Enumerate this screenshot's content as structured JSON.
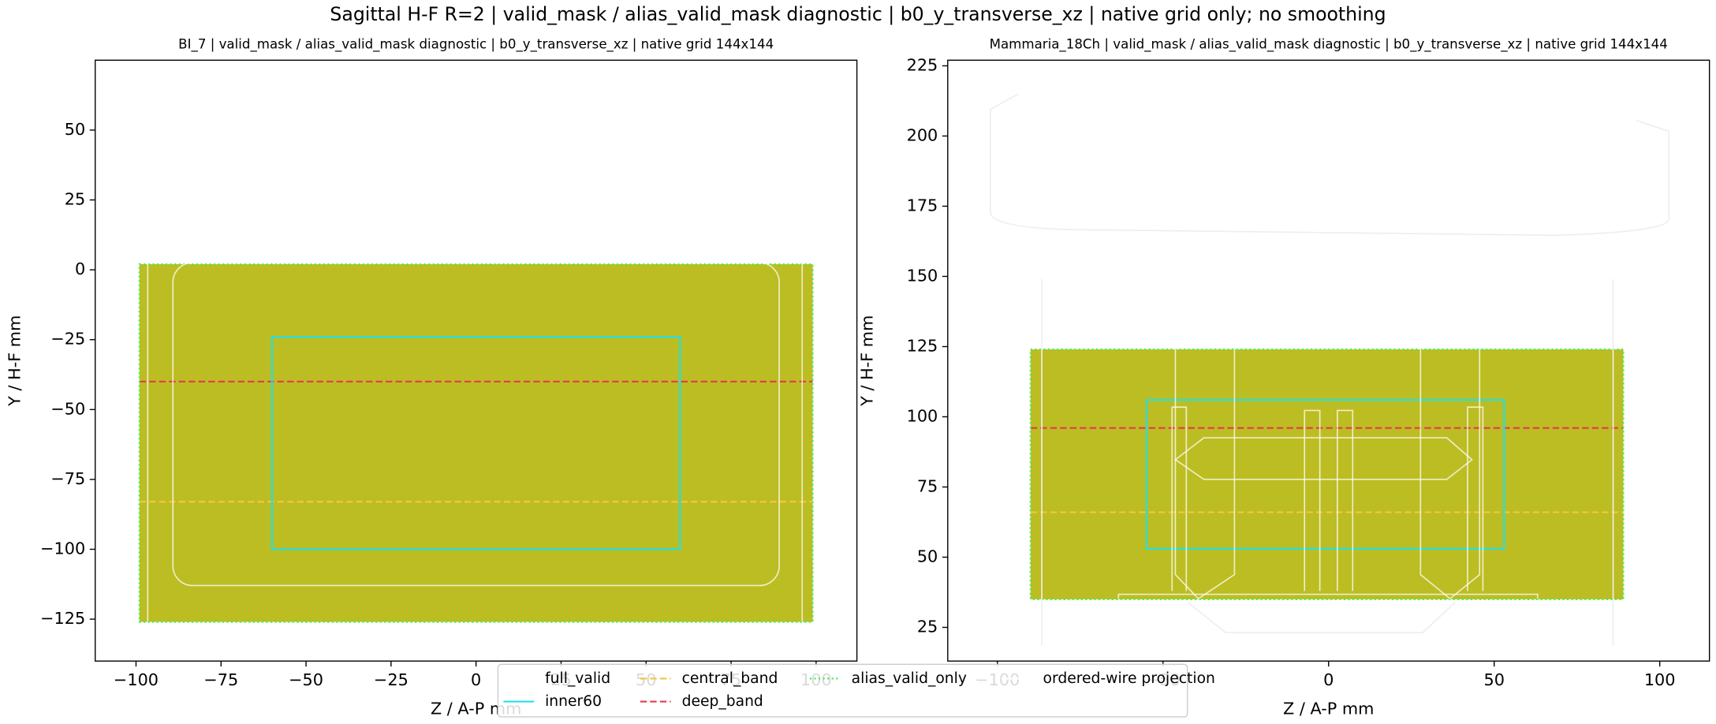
{
  "title": "Sagittal H-F R=2 | valid_mask / alias_valid_mask diagnostic | b0_y_transverse_xz | native grid only; no smoothing",
  "legend": [
    {
      "name": "full_valid",
      "color": "#bcbd22",
      "style": "blank"
    },
    {
      "name": "inner60",
      "color": "#22e0e6",
      "style": "solid"
    },
    {
      "name": "central_band",
      "color": "#f2c744",
      "style": "dashed"
    },
    {
      "name": "deep_band",
      "color": "#e8384f",
      "style": "dashed"
    },
    {
      "name": "alias_valid_only",
      "color": "#44ee55",
      "style": "dotted"
    },
    {
      "name": "ordered-wire projection",
      "color": "#ffffff",
      "style": "solid"
    }
  ],
  "chart_data": [
    {
      "type": "region",
      "title": "BI_7 | valid_mask / alias_valid_mask diagnostic | b0_y_transverse_xz | native grid 144x144",
      "xlabel": "Z / A-P mm",
      "ylabel": "Y / H-F mm",
      "xlim": [
        -112,
        112
      ],
      "ylim": [
        -140,
        75
      ],
      "xticks": [
        {
          "value": -100,
          "label": "−100"
        },
        {
          "value": -75,
          "label": "−75"
        },
        {
          "value": -50,
          "label": "−50"
        },
        {
          "value": -25,
          "label": "−25"
        },
        0,
        25,
        50,
        75,
        100
      ],
      "yticks": [
        {
          "value": -125,
          "label": "−125"
        },
        {
          "value": -100,
          "label": "−100"
        },
        {
          "value": -75,
          "label": "−75"
        },
        {
          "value": -50,
          "label": "−50"
        },
        {
          "value": -25,
          "label": "−25"
        },
        0,
        25,
        50
      ],
      "series": [
        {
          "x": [
            -99,
            99
          ],
          "y": [
            -126,
            2
          ]
        },
        {
          "x": [
            -60,
            60
          ],
          "y": [
            -100,
            -24
          ]
        },
        {
          "y": -83
        },
        {
          "y": -40
        },
        {
          "x": [
            -99,
            99
          ],
          "y": [
            -126,
            2
          ]
        }
      ]
    },
    {
      "type": "region",
      "title": "Mammaria_18Ch | valid_mask / alias_valid_mask diagnostic | b0_y_transverse_xz | native grid 144x144",
      "xlabel": "Z / A-P mm",
      "ylabel": "Y / H-F mm",
      "xlim": [
        -115,
        115
      ],
      "ylim": [
        13,
        227
      ],
      "xticks": [
        {
          "value": -100,
          "label": "−100"
        },
        {
          "value": -50,
          "label": "−50"
        },
        0,
        50,
        100
      ],
      "yticks": [
        25,
        50,
        75,
        100,
        125,
        150,
        175,
        200,
        225
      ],
      "series": [
        {
          "x": [
            -90,
            89
          ],
          "y": [
            35,
            124
          ]
        },
        {
          "x": [
            -55,
            53
          ],
          "y": [
            53,
            106
          ]
        },
        {
          "y": 66
        },
        {
          "y": 96
        },
        {
          "x": [
            -90,
            89
          ],
          "y": [
            35,
            124
          ]
        }
      ]
    }
  ]
}
